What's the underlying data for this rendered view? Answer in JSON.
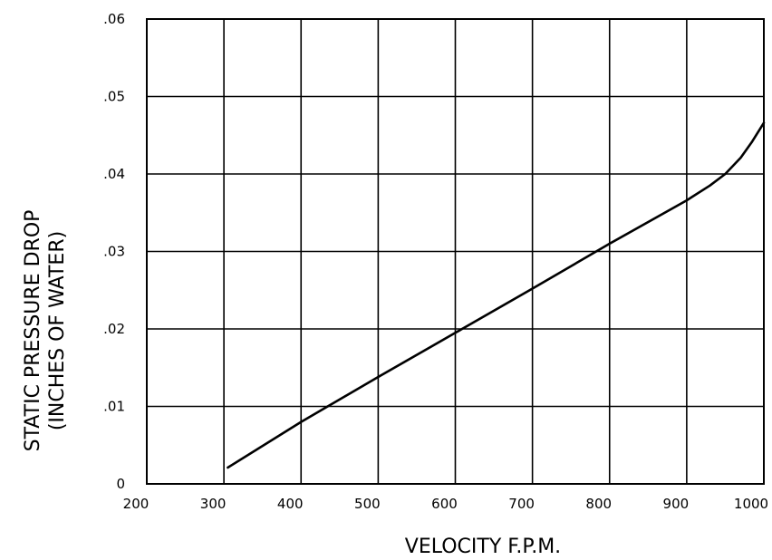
{
  "chart_data": {
    "type": "line",
    "title": "",
    "xlabel": "VELOCITY F.P.M.",
    "ylabel_line1": "STATIC PRESSURE DROP",
    "ylabel_line2": "(INCHES OF WATER)",
    "xlim": [
      200,
      1000
    ],
    "ylim": [
      0,
      0.06
    ],
    "x_ticks": [
      200,
      300,
      400,
      500,
      600,
      700,
      800,
      900,
      1000
    ],
    "x_tick_labels": [
      "200",
      "300",
      "400",
      "500",
      "600",
      "700",
      "800",
      "900",
      "1000"
    ],
    "y_ticks": [
      0,
      0.01,
      0.02,
      0.03,
      0.04,
      0.05,
      0.06
    ],
    "y_tick_labels": [
      "0",
      ".01",
      ".02",
      ".03",
      ".04",
      ".05",
      ".06"
    ],
    "grid": true,
    "legend": "none",
    "line_color": "#000000",
    "series": [
      {
        "x": [
          305,
          400,
          500,
          600,
          700,
          800,
          900,
          930,
          950,
          970,
          985,
          1000
        ],
        "values": [
          0.0021,
          0.008,
          0.0138,
          0.0195,
          0.0252,
          0.031,
          0.0366,
          0.0385,
          0.04,
          0.0421,
          0.0442,
          0.0466
        ]
      }
    ]
  }
}
